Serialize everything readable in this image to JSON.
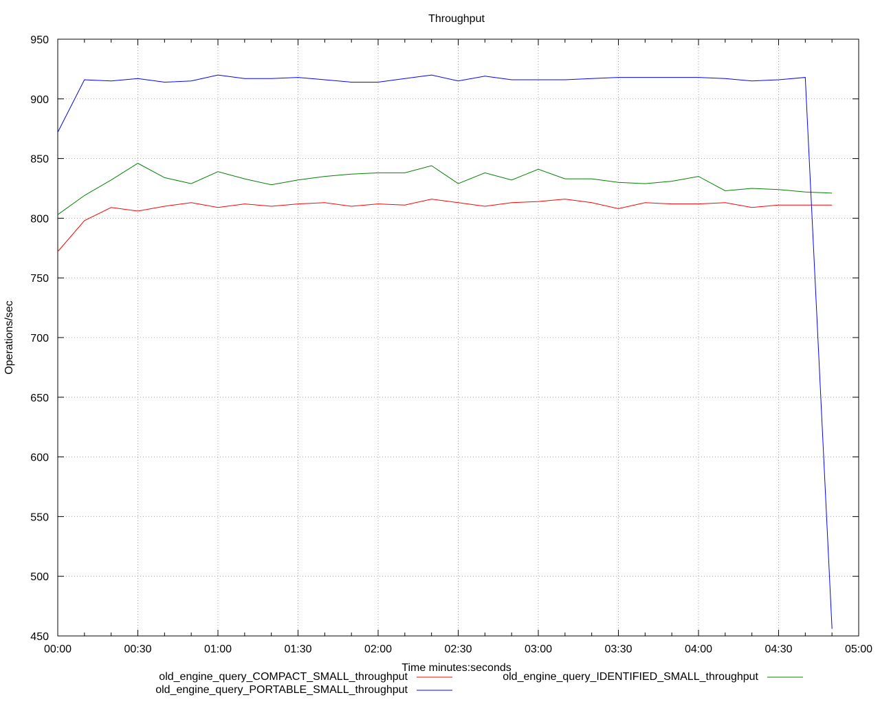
{
  "chart_data": {
    "type": "line",
    "title": "Throughput",
    "xlabel": "Time minutes:seconds",
    "ylabel": "Operations/sec",
    "xlim": [
      0,
      300
    ],
    "ylim": [
      450,
      950
    ],
    "grid": true,
    "legend_position": "bottom",
    "x_ticks": [
      0,
      30,
      60,
      90,
      120,
      150,
      180,
      210,
      240,
      270,
      300
    ],
    "x_tick_labels": [
      "00:00",
      "00:30",
      "01:00",
      "01:30",
      "02:00",
      "02:30",
      "03:00",
      "03:30",
      "04:00",
      "04:30",
      "05:00"
    ],
    "y_ticks": [
      450,
      500,
      550,
      600,
      650,
      700,
      750,
      800,
      850,
      900,
      950
    ],
    "y_tick_labels": [
      "450",
      "500",
      "550",
      "600",
      "650",
      "700",
      "750",
      "800",
      "850",
      "900",
      "950"
    ],
    "x": [
      0,
      10,
      20,
      30,
      40,
      50,
      60,
      70,
      80,
      90,
      100,
      110,
      120,
      130,
      140,
      150,
      160,
      170,
      180,
      190,
      200,
      210,
      220,
      230,
      240,
      250,
      260,
      270,
      280,
      290
    ],
    "series": [
      {
        "name": "old_engine_query_COMPACT_SMALL_throughput",
        "color": "#ff0000",
        "values": [
          772,
          798,
          809,
          806,
          810,
          813,
          809,
          812,
          810,
          812,
          813,
          810,
          812,
          811,
          816,
          813,
          810,
          813,
          814,
          816,
          813,
          808,
          813,
          812,
          812,
          813,
          809,
          811,
          811,
          811
        ]
      },
      {
        "name": "old_engine_query_IDENTIFIED_SMALL_throughput",
        "color": "#008000",
        "values": [
          803,
          819,
          832,
          846,
          834,
          829,
          839,
          833,
          828,
          832,
          835,
          837,
          838,
          838,
          844,
          829,
          838,
          832,
          841,
          833,
          833,
          830,
          829,
          831,
          835,
          823,
          825,
          824,
          822,
          821
        ]
      },
      {
        "name": "old_engine_query_PORTABLE_SMALL_throughput",
        "color": "#0000ff",
        "values": [
          872,
          916,
          915,
          917,
          914,
          915,
          920,
          917,
          917,
          918,
          916,
          914,
          914,
          917,
          920,
          915,
          919,
          916,
          916,
          916,
          917,
          918,
          918,
          918,
          918,
          917,
          915,
          916,
          918,
          456
        ]
      }
    ]
  }
}
